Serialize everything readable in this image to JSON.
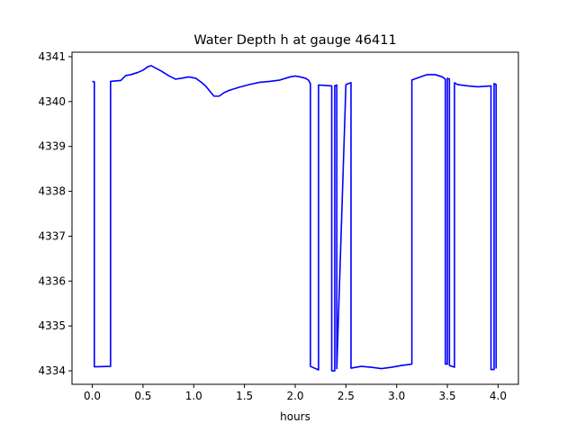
{
  "chart_data": {
    "type": "line",
    "title": "Water Depth h at gauge 46411",
    "xlabel": "hours",
    "ylabel": "",
    "xlim": [
      -0.2,
      4.2
    ],
    "ylim": [
      4333.7,
      4341.1
    ],
    "xticks": [
      0.0,
      0.5,
      1.0,
      1.5,
      2.0,
      2.5,
      3.0,
      3.5,
      4.0
    ],
    "xtick_labels": [
      "0.0",
      "0.5",
      "1.0",
      "1.5",
      "2.0",
      "2.5",
      "3.0",
      "3.5",
      "4.0"
    ],
    "yticks": [
      4334,
      4335,
      4336,
      4337,
      4338,
      4339,
      4340,
      4341
    ],
    "ytick_labels": [
      "4334",
      "4335",
      "4336",
      "4337",
      "4338",
      "4339",
      "4340",
      "4341"
    ],
    "grid": false,
    "series": [
      {
        "name": "",
        "color": "#0000ff",
        "x": [
          0.0,
          0.02,
          0.02,
          0.18,
          0.18,
          0.28,
          0.33,
          0.38,
          0.45,
          0.5,
          0.55,
          0.58,
          0.62,
          0.68,
          0.75,
          0.82,
          0.88,
          0.95,
          1.02,
          1.08,
          1.12,
          1.17,
          1.2,
          1.25,
          1.3,
          1.35,
          1.45,
          1.55,
          1.65,
          1.75,
          1.85,
          1.95,
          2.0,
          2.05,
          2.1,
          2.13,
          2.15,
          2.15,
          2.23,
          2.23,
          2.36,
          2.36,
          2.39,
          2.39,
          2.41,
          2.41,
          2.5,
          2.55,
          2.55,
          2.65,
          2.75,
          2.85,
          2.95,
          3.05,
          3.15,
          3.15,
          3.2,
          3.3,
          3.38,
          3.45,
          3.48,
          3.48,
          3.5,
          3.5,
          3.52,
          3.52,
          3.57,
          3.57,
          3.6,
          3.7,
          3.8,
          3.93,
          3.93,
          3.96,
          3.96,
          3.98,
          3.98
        ],
        "y": [
          4340.45,
          4340.44,
          4334.09,
          4334.1,
          4340.45,
          4340.47,
          4340.58,
          4340.6,
          4340.65,
          4340.7,
          4340.78,
          4340.8,
          4340.75,
          4340.68,
          4340.58,
          4340.5,
          4340.52,
          4340.55,
          4340.52,
          4340.42,
          4340.34,
          4340.2,
          4340.12,
          4340.12,
          4340.2,
          4340.25,
          4340.32,
          4340.38,
          4340.43,
          4340.45,
          4340.48,
          4340.55,
          4340.57,
          4340.55,
          4340.52,
          4340.48,
          4340.4,
          4334.1,
          4334.02,
          4340.37,
          4340.35,
          4334.0,
          4334.0,
          4340.35,
          4340.37,
          4334.05,
          4340.38,
          4340.42,
          4334.06,
          4334.1,
          4334.08,
          4334.05,
          4334.08,
          4334.12,
          4334.15,
          4340.48,
          4340.52,
          4340.6,
          4340.6,
          4340.55,
          4340.5,
          4334.15,
          4334.15,
          4340.52,
          4340.5,
          4334.12,
          4334.08,
          4340.42,
          4340.38,
          4340.35,
          4340.33,
          4340.35,
          4334.03,
          4334.03,
          4340.4,
          4340.38,
          4334.05
        ]
      }
    ]
  }
}
